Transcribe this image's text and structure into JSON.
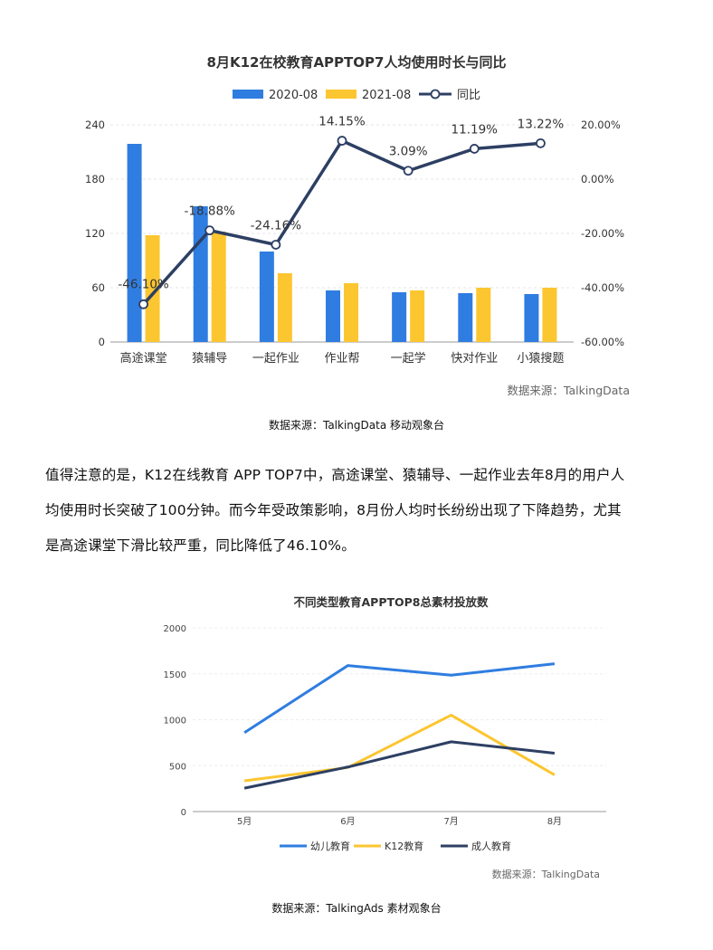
{
  "chart_data": [
    {
      "type": "bar",
      "title": "8月K12在校教育APPTOP7人均使用时长与同比",
      "categories": [
        "高途课堂",
        "猿辅导",
        "一起作业",
        "作业帮",
        "一起学",
        "快对作业",
        "小猿搜题"
      ],
      "series": [
        {
          "name": "2020-08",
          "color": "#2f7de1",
          "values": [
            219,
            150,
            100,
            57,
            55,
            54,
            53
          ]
        },
        {
          "name": "2021-08",
          "color": "#fcc630",
          "values": [
            118,
            122,
            76,
            65,
            57,
            60,
            60
          ]
        }
      ],
      "line": {
        "name": "同比",
        "color": "#2d3f63",
        "values": [
          -46.1,
          -18.88,
          -24.16,
          14.15,
          3.09,
          11.19,
          13.22
        ],
        "labels": [
          "-46.10%",
          "-18.88%",
          "-24.16%",
          "14.15%",
          "3.09%",
          "11.19%",
          "13.22%"
        ]
      },
      "ylim": [
        0,
        240
      ],
      "yticks": [
        "0",
        "60",
        "120",
        "180",
        "240"
      ],
      "y2lim": [
        -60,
        20
      ],
      "y2ticks": [
        "-60.00%",
        "-40.00%",
        "-20.00%",
        "0.00%",
        "20.00%"
      ],
      "legend": "top",
      "source": "数据来源：TalkingData"
    },
    {
      "type": "line",
      "title": "不同类型教育APPTOP8总素材投放数",
      "categories": [
        "5月",
        "6月",
        "7月",
        "8月"
      ],
      "series": [
        {
          "name": "幼儿教育",
          "color": "#2f7de1",
          "values": [
            860,
            1590,
            1485,
            1610
          ]
        },
        {
          "name": "K12教育",
          "color": "#fcc630",
          "values": [
            335,
            480,
            1050,
            400
          ]
        },
        {
          "name": "成人教育",
          "color": "#2d3f63",
          "values": [
            255,
            485,
            760,
            635
          ]
        }
      ],
      "ylim": [
        0,
        2000
      ],
      "yticks": [
        "0",
        "500",
        "1000",
        "1500",
        "2000"
      ],
      "legend": "bottom",
      "source": "数据来源：TalkingData"
    }
  ],
  "captions": {
    "chart1": "数据来源：TalkingData 移动观象台",
    "chart2": "数据来源：TalkingAds 素材观象台"
  },
  "paragraph": {
    "line1": "值得注意的是，K12在线教育 APP TOP7中，高途课堂、猿辅导、一起作业去年8月的用户人",
    "line2": "均使用时长突破了100分钟。而今年受政策影响，8月份人均时长纷纷出现了下降趋势，尤其",
    "line3": "是高途课堂下滑比较严重，同比降低了46.10%。"
  }
}
